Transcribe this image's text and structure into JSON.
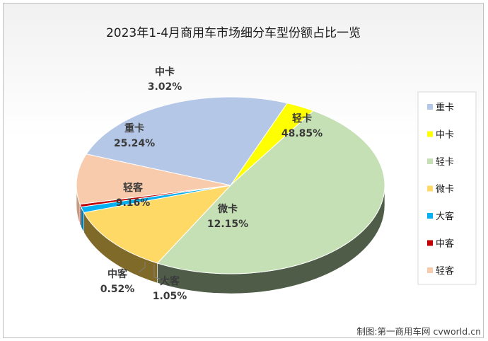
{
  "chart_data": {
    "type": "pie",
    "title": "2023年1-4月商用车市场细分车型份额占比一览",
    "slices": [
      {
        "name": "重卡",
        "value": 25.24,
        "label": "25.24%",
        "color": "#b4c7e7",
        "side": "#8fa3c4"
      },
      {
        "name": "中卡",
        "value": 3.02,
        "label": "3.02%",
        "color": "#ffff00",
        "side": "#c8c800"
      },
      {
        "name": "轻卡",
        "value": 48.85,
        "label": "48.85%",
        "color": "#c5e0b4",
        "side": "#4f5d48"
      },
      {
        "name": "微卡",
        "value": 12.15,
        "label": "12.15%",
        "color": "#ffd966",
        "side": "#7f6a2a"
      },
      {
        "name": "大客",
        "value": 1.05,
        "label": "1.05%",
        "color": "#00b0f0",
        "side": "#007aa8"
      },
      {
        "name": "中客",
        "value": 0.52,
        "label": "0.52%",
        "color": "#c00000",
        "side": "#800000"
      },
      {
        "name": "轻客",
        "value": 9.16,
        "label": "9.16%",
        "color": "#f8cbad",
        "side": "#c49a80"
      }
    ],
    "legend_position": "right"
  },
  "credit": "制图:第一商用车网 cvworld.cn"
}
